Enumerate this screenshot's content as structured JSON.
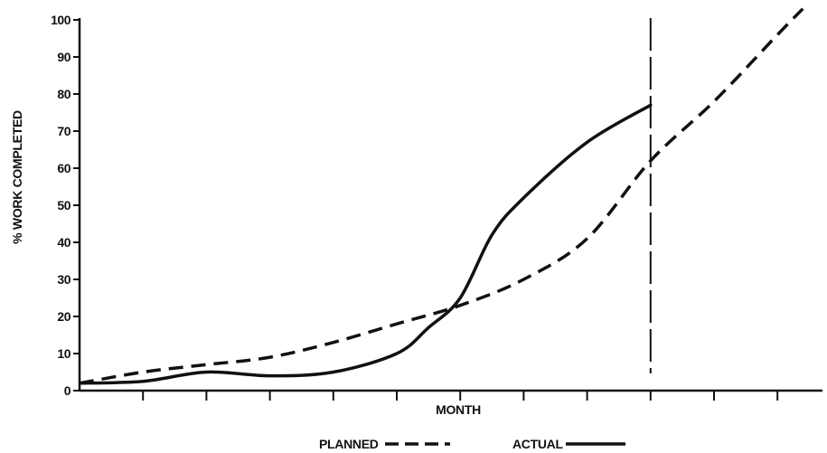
{
  "chart_data": {
    "type": "line",
    "title": "",
    "xlabel": "MONTH",
    "ylabel": "% WORK COMPLETED",
    "ylim": [
      0,
      100
    ],
    "yticks": [
      0,
      10,
      20,
      30,
      40,
      50,
      60,
      70,
      80,
      90,
      100
    ],
    "xlim": [
      0,
      12
    ],
    "xticks": [
      1,
      2,
      3,
      4,
      5,
      6,
      7,
      8,
      9,
      10,
      11,
      12
    ],
    "xtick_labels": [
      "",
      "",
      "",
      "",
      "",
      "",
      "",
      "",
      "",
      "",
      "",
      ""
    ],
    "grid": false,
    "legend_position": "bottom-center",
    "series": [
      {
        "name": "PLANNED",
        "style": "dashed",
        "x": [
          0,
          1,
          2,
          3,
          4,
          5,
          6,
          7,
          8,
          9,
          10,
          11,
          11.4
        ],
        "y": [
          2,
          5,
          7,
          9,
          13,
          18,
          23,
          30,
          41,
          62,
          78,
          96,
          103
        ]
      },
      {
        "name": "ACTUAL",
        "style": "solid",
        "x": [
          0,
          1,
          2,
          3,
          4,
          5,
          5.5,
          6,
          6.5,
          7,
          8,
          9
        ],
        "y": [
          2,
          2.5,
          5,
          4,
          5,
          10,
          17,
          25,
          42,
          52,
          67,
          77
        ]
      }
    ],
    "annotations": [
      {
        "type": "vertical-dashed-line",
        "x": 9
      }
    ]
  }
}
